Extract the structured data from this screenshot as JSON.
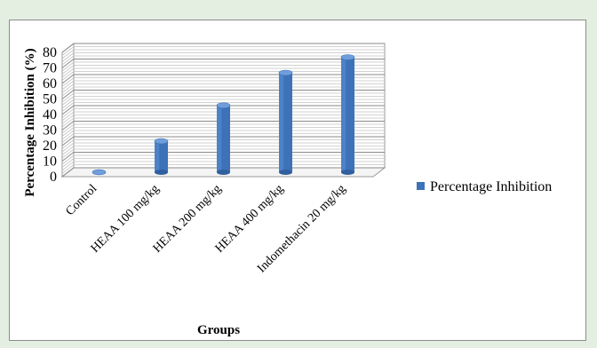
{
  "chart_data": {
    "type": "bar",
    "title": "",
    "xlabel": "Groups",
    "ylabel": "Percentage  Inhibition  (%)",
    "categories": [
      "Control",
      "HEAA 100 mg/kg",
      "HEAA 200 mg/kg",
      "HEAA 400 mg/kg",
      "Indomethacin 20 mg/kg"
    ],
    "series": [
      {
        "name": "Percentage Inhibition",
        "values": [
          0,
          20,
          43,
          64,
          74
        ],
        "color": "#3d72b8"
      }
    ],
    "yticks": [
      "0",
      "10",
      "20",
      "30",
      "40",
      "50",
      "60",
      "70",
      "80"
    ],
    "ylim": [
      0,
      80
    ],
    "grid": true,
    "legend": "right",
    "style": "3d-cylinder"
  }
}
